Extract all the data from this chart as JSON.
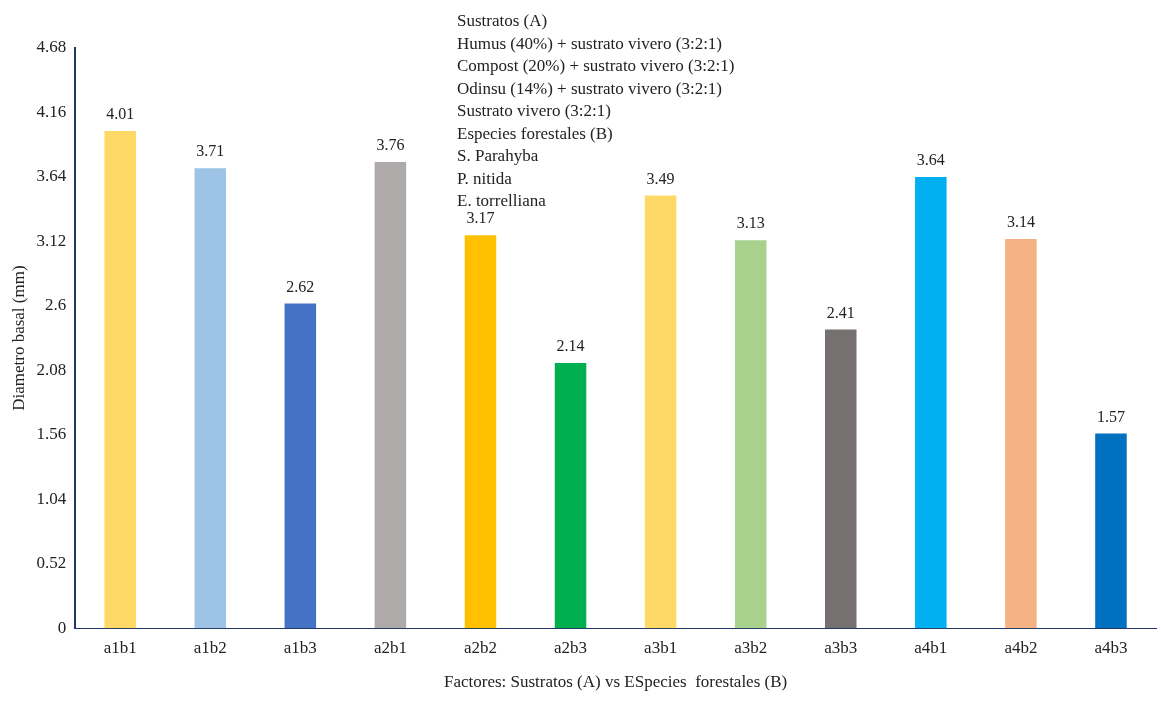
{
  "chart_data": {
    "type": "bar",
    "xlabel": "Factores: Sustratos (A) vs ESpecies  forestales (B)",
    "ylabel": "Diametro basal (mm)",
    "categories": [
      "a1b1",
      "a1b2",
      "a1b3",
      "a2b1",
      "a2b2",
      "a2b3",
      "a3b1",
      "a3b2",
      "a3b3",
      "a4b1",
      "a4b2",
      "a4b3"
    ],
    "values": [
      4.01,
      3.71,
      2.62,
      3.76,
      3.17,
      2.14,
      3.49,
      3.13,
      2.41,
      3.64,
      3.14,
      1.57
    ],
    "colors": [
      "#ffd966",
      "#9dc3e6",
      "#4472c4",
      "#aeaaaa",
      "#ffc000",
      "#00b050",
      "#ffd966",
      "#a9d18e",
      "#767171",
      "#00b0f0",
      "#f4b183",
      "#0070c0"
    ],
    "ylim": [
      0,
      4.68
    ],
    "yticks": [
      0,
      0.52,
      1.04,
      1.56,
      2.08,
      2.6,
      3.12,
      3.64,
      4.16,
      4.68
    ],
    "grid": false,
    "legend": false,
    "data_labels": true,
    "annotations": [
      "Sustratos (A)",
      "Humus (40%) + sustrato vivero (3:2:1)",
      "Compost (20%) + sustrato vivero (3:2:1)",
      "Odinsu (14%) + sustrato vivero (3:2:1)",
      "Sustrato vivero (3:2:1)",
      "Especies forestales (B)",
      "S. Parahyba",
      "P. nitida",
      "E. torrelliana"
    ]
  }
}
